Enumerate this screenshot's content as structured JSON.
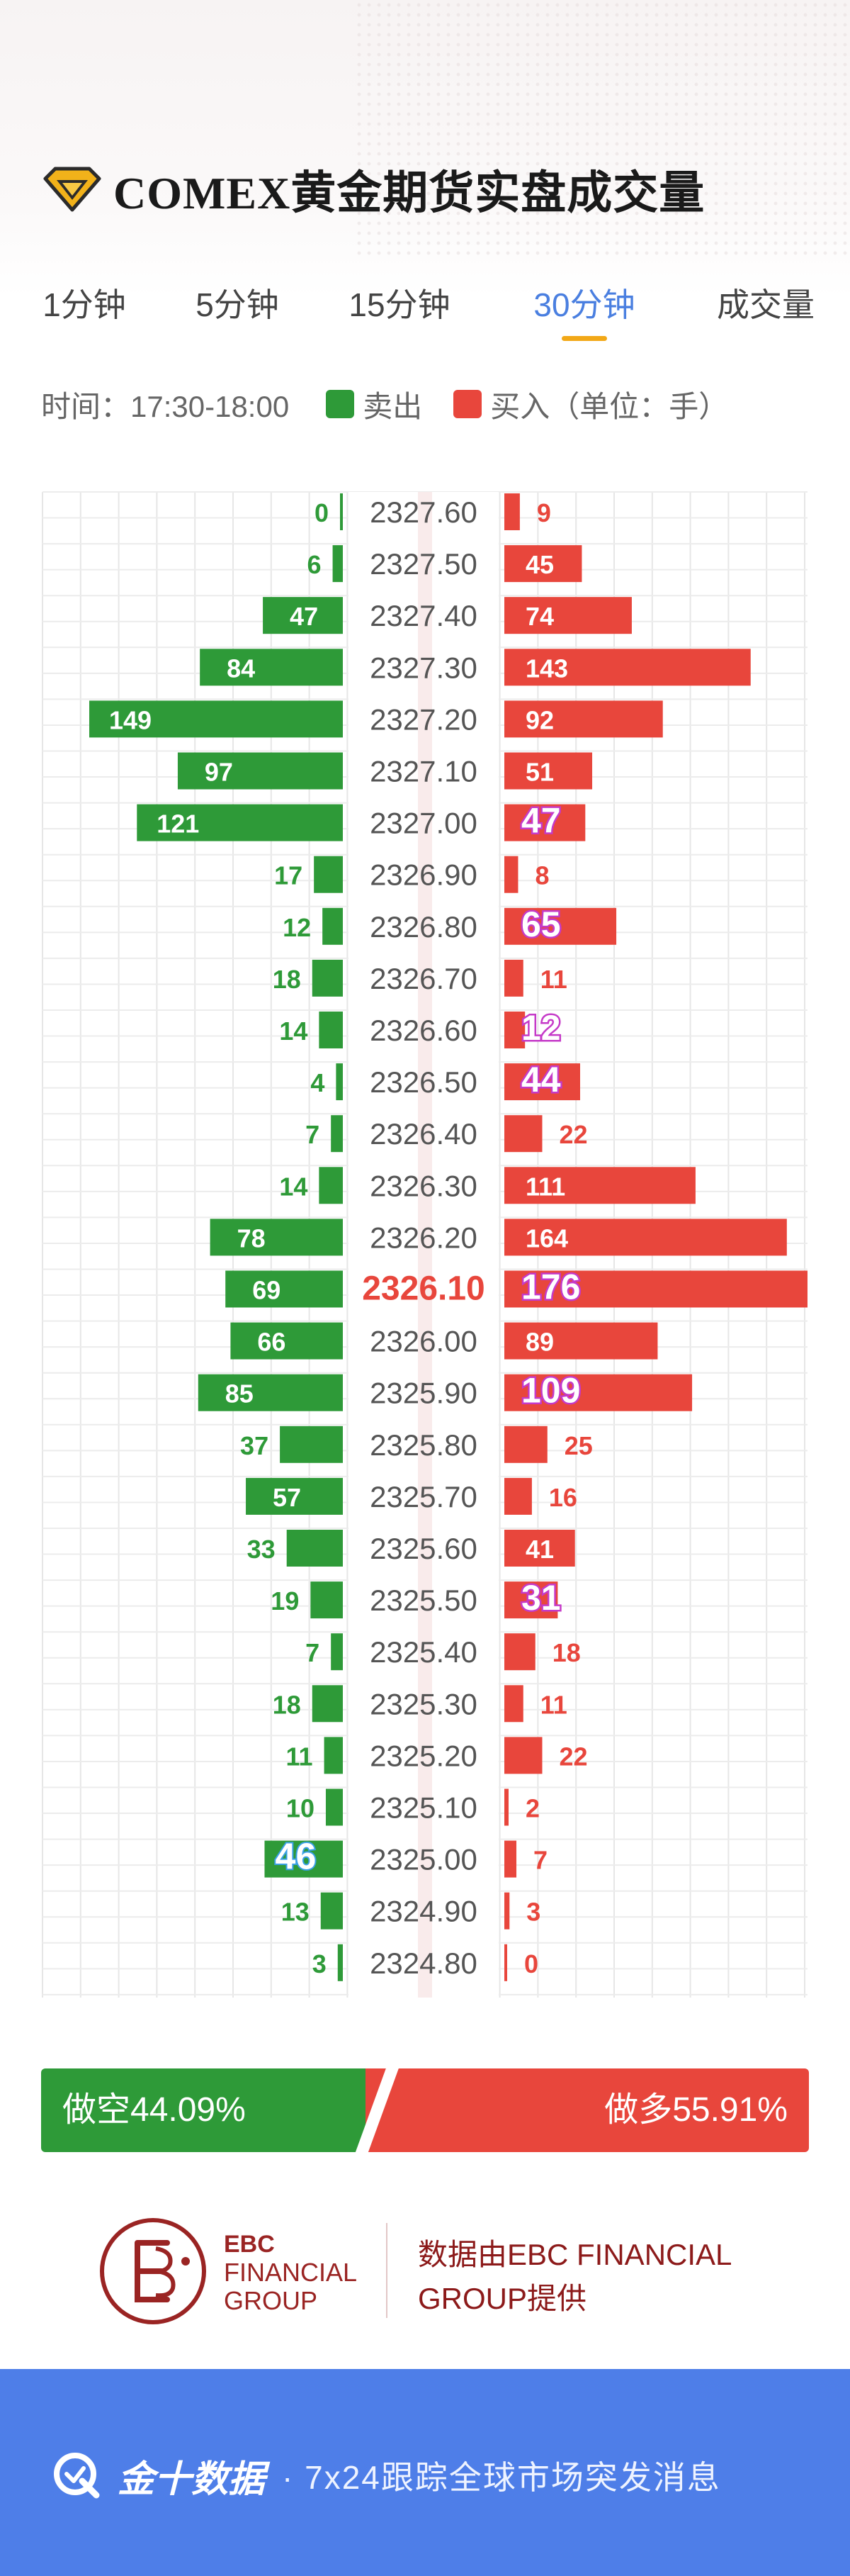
{
  "header": {
    "title": "COMEX黄金期货实盘成交量"
  },
  "tabs": [
    {
      "label": "1分钟",
      "active": false
    },
    {
      "label": "5分钟",
      "active": false
    },
    {
      "label": "15分钟",
      "active": false
    },
    {
      "label": "30分钟",
      "active": true
    },
    {
      "label": "成交量",
      "active": false
    }
  ],
  "legend": {
    "time": "时间：17:30-18:00",
    "sell_label": "卖出",
    "buy_label": "买入（单位：手）",
    "sell_color": "#2e9a38",
    "buy_color": "#e8463c"
  },
  "chart_data": {
    "type": "bar",
    "orientation": "horizontal-butterfly",
    "categories": [
      "2327.60",
      "2327.50",
      "2327.40",
      "2327.30",
      "2327.20",
      "2327.10",
      "2327.00",
      "2326.90",
      "2326.80",
      "2326.70",
      "2326.60",
      "2326.50",
      "2326.40",
      "2326.30",
      "2326.20",
      "2326.10",
      "2326.00",
      "2325.90",
      "2325.80",
      "2325.70",
      "2325.60",
      "2325.50",
      "2325.40",
      "2325.30",
      "2325.20",
      "2325.10",
      "2325.00",
      "2324.90",
      "2324.80"
    ],
    "series": [
      {
        "name": "卖出",
        "color": "#2e9a38",
        "values": [
          0,
          6,
          47,
          84,
          149,
          97,
          121,
          17,
          12,
          18,
          14,
          4,
          7,
          14,
          78,
          69,
          66,
          85,
          37,
          57,
          33,
          19,
          7,
          18,
          11,
          10,
          46,
          13,
          3
        ]
      },
      {
        "name": "买入",
        "color": "#e8463c",
        "values": [
          9,
          45,
          74,
          143,
          92,
          51,
          47,
          8,
          65,
          11,
          12,
          44,
          22,
          111,
          164,
          176,
          89,
          109,
          25,
          16,
          41,
          31,
          18,
          11,
          22,
          2,
          7,
          3,
          0
        ]
      }
    ],
    "highlight_price": "2326.10",
    "highlight_sell": [
      26
    ],
    "highlight_buy": [
      6,
      8,
      10,
      11,
      15,
      17,
      21
    ],
    "xlim_sell": [
      0,
      160
    ],
    "xlim_buy": [
      0,
      176
    ],
    "grid": true
  },
  "ratio": {
    "short_label": "做空44.09%",
    "long_label": "做多55.91%",
    "short_pct": 44.09,
    "long_pct": 55.91
  },
  "source": {
    "logo_line1": "EBC",
    "logo_line2": "FINANCIAL",
    "logo_line3": "GROUP",
    "text_line1": "数据由EBC FINANCIAL",
    "text_line2": "GROUP提供"
  },
  "footer": {
    "brand": "金十数据",
    "slogan": "· 7x24跟踪全球市场突发消息"
  }
}
